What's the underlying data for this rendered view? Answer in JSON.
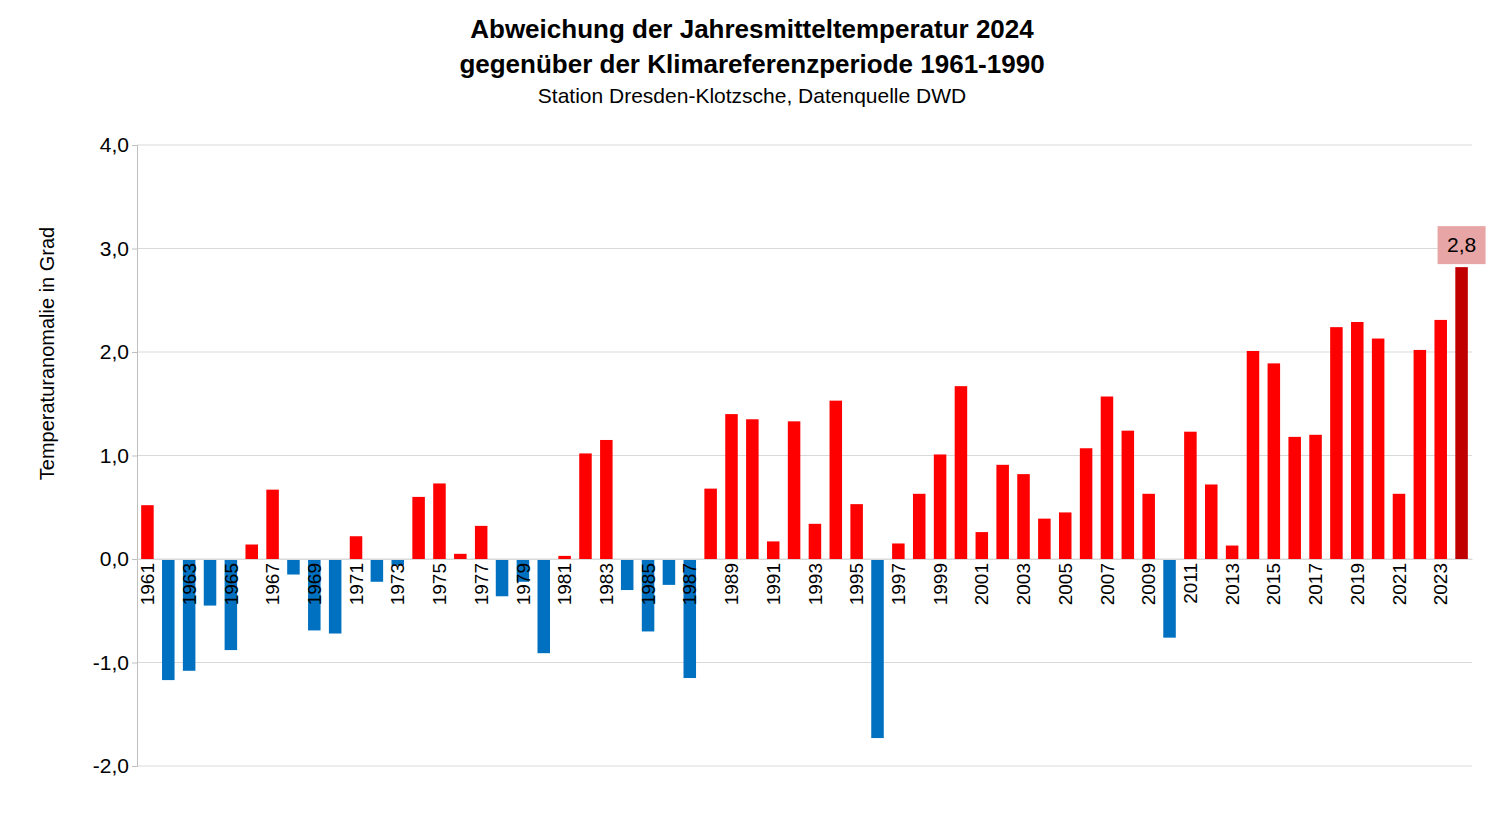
{
  "chart_data": {
    "type": "bar",
    "title": [
      "Abweichung der Jahresmitteltemperatur 2024",
      "gegenüber der Klimareferenzperiode 1961-1990"
    ],
    "subtitle": "Station Dresden-Klotzsche, Datenquelle DWD",
    "y_label": "Temperaturanomalie in Grad",
    "categories": [
      "1961",
      null,
      "1963",
      null,
      "1965",
      null,
      "1967",
      null,
      "1969",
      null,
      "1971",
      null,
      "1973",
      null,
      "1975",
      null,
      "1977",
      null,
      "1979",
      null,
      "1981",
      null,
      "1983",
      null,
      "1985",
      null,
      "1987",
      null,
      "1989",
      null,
      "1991",
      null,
      "1993",
      null,
      "1995",
      null,
      "1997",
      null,
      "1999",
      null,
      "2001",
      null,
      "2003",
      null,
      "2005",
      null,
      "2007",
      null,
      "2009",
      null,
      "2011",
      null,
      "2013",
      null,
      "2015",
      null,
      "2017",
      null,
      "2019",
      null,
      "2021",
      null,
      "2023",
      null
    ],
    "values": [
      0.52,
      -1.17,
      -1.08,
      -0.45,
      -0.88,
      0.14,
      0.67,
      -0.15,
      -0.69,
      -0.72,
      0.22,
      -0.22,
      -0.06,
      0.6,
      0.73,
      0.05,
      0.32,
      -0.36,
      -0.22,
      -0.91,
      0.03,
      1.02,
      1.15,
      -0.3,
      -0.7,
      -0.25,
      -1.15,
      0.68,
      1.4,
      1.35,
      0.17,
      1.33,
      0.34,
      1.53,
      0.53,
      -1.73,
      0.15,
      0.63,
      1.01,
      1.67,
      0.26,
      0.91,
      0.82,
      0.39,
      0.45,
      1.07,
      1.57,
      1.24,
      0.63,
      -0.76,
      1.23,
      0.72,
      0.13,
      2.01,
      1.89,
      1.18,
      1.2,
      2.24,
      2.29,
      2.13,
      0.63,
      2.02,
      2.31,
      2.82
    ],
    "colors": [
      "#ff0000",
      "#0070c0",
      "#0070c0",
      "#0070c0",
      "#0070c0",
      "#ff0000",
      "#ff0000",
      "#0070c0",
      "#0070c0",
      "#0070c0",
      "#ff0000",
      "#0070c0",
      "#0070c0",
      "#ff0000",
      "#ff0000",
      "#ff0000",
      "#ff0000",
      "#0070c0",
      "#0070c0",
      "#0070c0",
      "#ff0000",
      "#ff0000",
      "#ff0000",
      "#0070c0",
      "#0070c0",
      "#0070c0",
      "#0070c0",
      "#ff0000",
      "#ff0000",
      "#ff0000",
      "#ff0000",
      "#ff0000",
      "#ff0000",
      "#ff0000",
      "#ff0000",
      "#0070c0",
      "#ff0000",
      "#ff0000",
      "#ff0000",
      "#ff0000",
      "#ff0000",
      "#ff0000",
      "#ff0000",
      "#ff0000",
      "#ff0000",
      "#ff0000",
      "#ff0000",
      "#ff0000",
      "#ff0000",
      "#0070c0",
      "#ff0000",
      "#ff0000",
      "#ff0000",
      "#ff0000",
      "#ff0000",
      "#ff0000",
      "#ff0000",
      "#ff0000",
      "#ff0000",
      "#ff0000",
      "#ff0000",
      "#ff0000",
      "#ff0000",
      "#c00000"
    ],
    "data_labels": true,
    "value_labels": [
      null,
      null,
      null,
      null,
      null,
      null,
      null,
      null,
      null,
      null,
      null,
      null,
      null,
      null,
      null,
      null,
      null,
      null,
      null,
      null,
      null,
      null,
      null,
      null,
      null,
      null,
      null,
      null,
      null,
      null,
      null,
      null,
      null,
      null,
      null,
      null,
      null,
      null,
      null,
      null,
      null,
      null,
      null,
      null,
      null,
      null,
      null,
      null,
      null,
      null,
      null,
      null,
      null,
      null,
      null,
      null,
      null,
      null,
      null,
      null,
      null,
      null,
      null,
      "2,8"
    ],
    "ylim": [
      -2,
      4
    ],
    "yticks": [
      {
        "value": -2,
        "label": "-2,0"
      },
      {
        "value": -1,
        "label": "-1,0"
      },
      {
        "value": 0,
        "label": "0,0"
      },
      {
        "value": 1,
        "label": "1,0"
      },
      {
        "value": 2,
        "label": "2,0"
      },
      {
        "value": 3,
        "label": "3,0"
      },
      {
        "value": 4,
        "label": "4,0"
      }
    ],
    "grid": true
  }
}
